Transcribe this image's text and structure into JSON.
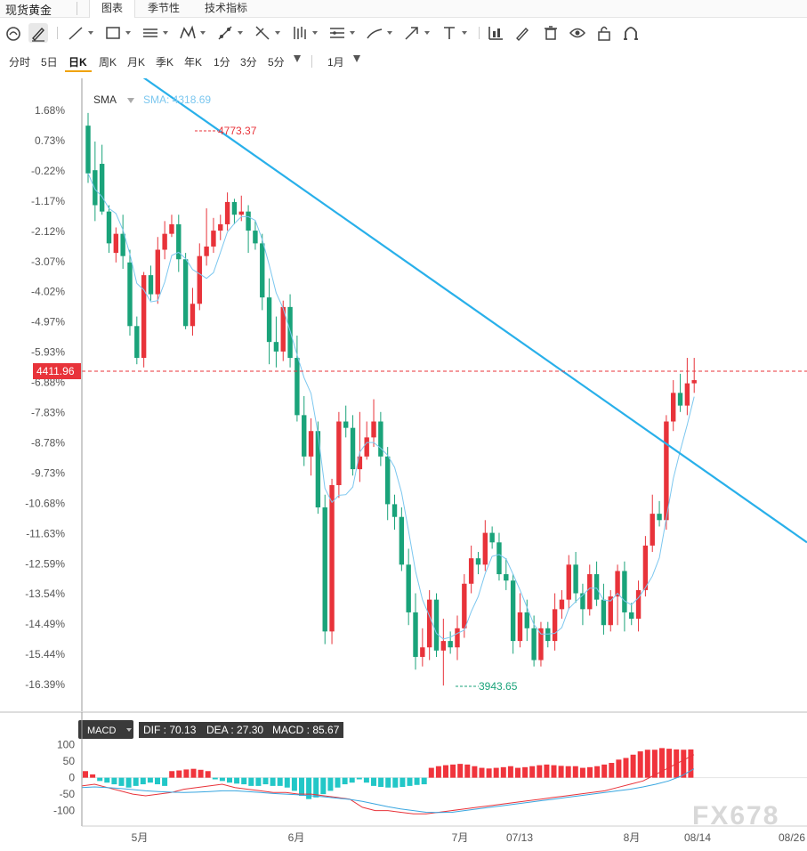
{
  "header": {
    "symbol": "现货黄金",
    "tabs": [
      {
        "label": "图表",
        "active": true
      },
      {
        "label": "季节性",
        "active": false
      },
      {
        "label": "技术指标",
        "active": false
      }
    ]
  },
  "toolbar": {
    "tools": [
      "magnet-icon",
      "pen-icon",
      "line-icon",
      "rectangle-icon",
      "parallel-lines-icon",
      "pattern-icon",
      "fib-icon",
      "cross-lines-icon",
      "bars-icon",
      "channel-icon",
      "brush-icon",
      "arrow-icon",
      "text-icon",
      "bar-chart-icon",
      "edit-icon",
      "trash-icon",
      "eye-icon",
      "lock-icon",
      "magnet-u-icon"
    ]
  },
  "timeframes": {
    "items": [
      "分时",
      "5日",
      "日K",
      "周K",
      "月K",
      "季K",
      "年K",
      "1分",
      "3分",
      "5分"
    ],
    "active": "日K",
    "range": "1月"
  },
  "main_chart": {
    "indicator_label": "SMA",
    "sma_value_label": "SMA: 4318.69",
    "high_label": "4773.37",
    "low_label": "3943.65",
    "current_price_label": "4411.96",
    "y_ticks": [
      "1.68%",
      "0.73%",
      "-0.22%",
      "-1.17%",
      "-2.12%",
      "-3.07%",
      "-4.02%",
      "-4.97%",
      "-5.93%",
      "-6.88%",
      "-7.83%",
      "-8.78%",
      "-9.73%",
      "-10.68%",
      "-11.63%",
      "-12.59%",
      "-13.54%",
      "-14.49%",
      "-15.44%",
      "-16.39%"
    ],
    "x_ticks": [
      "5月",
      "6月",
      "7月",
      "07/13",
      "8月",
      "08/14",
      "08/26"
    ]
  },
  "macd": {
    "label": "MACD",
    "dif_label": "DIF : 70.13",
    "dea_label": "DEA : 27.30",
    "macd_label": "MACD : 85.67",
    "y_ticks": [
      "100",
      "50",
      "0",
      "-50",
      "-100"
    ]
  },
  "watermark": "FX678",
  "colors": {
    "up": "#e8333a",
    "down": "#1aa37a",
    "trend": "#29b0ea",
    "sma": "#7cc7ef",
    "macd_pos": "#f0343c",
    "macd_neg": "#22c7c7",
    "dif": "#e8333a",
    "dea": "#39a6e0"
  },
  "chart_data": {
    "type": "candlestick",
    "candles": [
      [
        1.2,
        -0.3,
        1.6,
        -0.6
      ],
      [
        -0.2,
        -1.3,
        0.7,
        -1.8
      ],
      [
        0.0,
        -1.5,
        0.6,
        -1.6
      ],
      [
        -1.5,
        -2.5,
        -1.3,
        -2.8
      ],
      [
        -2.8,
        -2.2,
        -2.0,
        -3.1
      ],
      [
        -2.2,
        -2.9,
        -1.6,
        -3.3
      ],
      [
        -3.1,
        -5.1,
        -2.7,
        -5.4
      ],
      [
        -5.1,
        -6.1,
        -4.8,
        -6.3
      ],
      [
        -6.1,
        -3.5,
        -3.4,
        -6.4
      ],
      [
        -3.5,
        -4.1,
        -3.2,
        -4.3
      ],
      [
        -4.1,
        -2.7,
        -2.3,
        -4.4
      ],
      [
        -2.7,
        -2.2,
        -1.8,
        -3.0
      ],
      [
        -2.2,
        -1.9,
        -1.6,
        -2.3
      ],
      [
        -1.9,
        -3.0,
        -1.6,
        -3.4
      ],
      [
        -3.0,
        -5.1,
        -2.8,
        -5.2
      ],
      [
        -5.1,
        -4.4,
        -3.9,
        -5.4
      ],
      [
        -4.4,
        -2.9,
        -2.5,
        -4.6
      ],
      [
        -2.9,
        -2.6,
        -1.4,
        -3.2
      ],
      [
        -2.6,
        -2.1,
        -1.7,
        -2.8
      ],
      [
        -2.1,
        -1.9,
        -1.6,
        -2.4
      ],
      [
        -1.9,
        -1.2,
        -0.9,
        -2.1
      ],
      [
        -1.2,
        -1.6,
        -1.1,
        -1.9
      ],
      [
        -1.6,
        -1.5,
        -1.0,
        -1.8
      ],
      [
        -1.5,
        -2.1,
        -1.3,
        -2.8
      ],
      [
        -2.1,
        -2.5,
        -1.8,
        -2.7
      ],
      [
        -2.5,
        -4.2,
        -2.2,
        -4.6
      ],
      [
        -4.2,
        -5.6,
        -3.6,
        -6.3
      ],
      [
        -5.6,
        -5.9,
        -4.8,
        -6.4
      ],
      [
        -5.9,
        -4.5,
        -4.3,
        -6.2
      ],
      [
        -4.5,
        -6.1,
        -4.1,
        -6.4
      ],
      [
        -6.1,
        -7.9,
        -5.4,
        -8.1
      ],
      [
        -7.9,
        -9.2,
        -7.3,
        -9.5
      ],
      [
        -9.2,
        -8.4,
        -8.0,
        -9.8
      ],
      [
        -8.4,
        -10.8,
        -8.1,
        -11.0
      ],
      [
        -10.8,
        -14.7,
        -10.4,
        -15.1
      ],
      [
        -14.7,
        -10.1,
        -9.9,
        -15.1
      ],
      [
        -10.1,
        -8.1,
        -7.8,
        -10.5
      ],
      [
        -8.1,
        -8.3,
        -7.6,
        -8.6
      ],
      [
        -8.3,
        -9.6,
        -7.9,
        -9.8
      ],
      [
        -9.6,
        -9.2,
        -7.8,
        -10.0
      ],
      [
        -9.2,
        -8.6,
        -8.1,
        -9.3
      ],
      [
        -8.6,
        -8.1,
        -7.4,
        -8.9
      ],
      [
        -8.1,
        -9.2,
        -7.8,
        -9.5
      ],
      [
        -9.2,
        -10.7,
        -8.9,
        -11.2
      ],
      [
        -10.7,
        -11.1,
        -10.4,
        -11.5
      ],
      [
        -11.1,
        -12.6,
        -10.8,
        -12.8
      ],
      [
        -12.6,
        -14.1,
        -12.1,
        -14.5
      ],
      [
        -14.1,
        -15.5,
        -13.5,
        -15.9
      ],
      [
        -15.5,
        -15.2,
        -14.6,
        -15.8
      ],
      [
        -15.2,
        -13.7,
        -13.4,
        -15.6
      ],
      [
        -13.7,
        -15.3,
        -13.5,
        -15.5
      ],
      [
        -15.3,
        -15.0,
        -14.3,
        -16.4
      ],
      [
        -15.0,
        -15.2,
        -14.7,
        -15.4
      ],
      [
        -15.2,
        -14.6,
        -14.2,
        -15.6
      ],
      [
        -14.6,
        -13.2,
        -12.9,
        -14.9
      ],
      [
        -13.2,
        -12.4,
        -12.0,
        -13.5
      ],
      [
        -12.4,
        -12.6,
        -12.2,
        -12.9
      ],
      [
        -12.6,
        -11.6,
        -11.2,
        -12.8
      ],
      [
        -11.6,
        -11.9,
        -11.4,
        -12.1
      ],
      [
        -11.9,
        -12.9,
        -11.6,
        -13.1
      ],
      [
        -12.9,
        -13.1,
        -12.4,
        -13.4
      ],
      [
        -13.1,
        -15.0,
        -12.9,
        -15.4
      ],
      [
        -15.0,
        -14.1,
        -13.5,
        -15.2
      ],
      [
        -14.1,
        -14.6,
        -13.7,
        -15.0
      ],
      [
        -14.6,
        -15.6,
        -14.2,
        -15.8
      ],
      [
        -15.6,
        -14.6,
        -14.4,
        -15.8
      ],
      [
        -14.6,
        -15.0,
        -14.4,
        -15.2
      ],
      [
        -15.0,
        -14.0,
        -13.5,
        -15.3
      ],
      [
        -14.0,
        -13.7,
        -13.4,
        -14.3
      ],
      [
        -13.7,
        -12.6,
        -12.3,
        -14.0
      ],
      [
        -12.6,
        -13.5,
        -12.2,
        -13.8
      ],
      [
        -13.5,
        -14.0,
        -13.2,
        -14.5
      ],
      [
        -14.0,
        -12.9,
        -12.6,
        -14.2
      ],
      [
        -12.9,
        -13.7,
        -12.5,
        -13.9
      ],
      [
        -13.7,
        -14.5,
        -13.2,
        -14.8
      ],
      [
        -14.5,
        -13.6,
        -13.4,
        -14.7
      ],
      [
        -13.6,
        -12.8,
        -12.6,
        -14.5
      ],
      [
        -12.8,
        -14.1,
        -12.5,
        -14.7
      ],
      [
        -14.1,
        -14.3,
        -13.8,
        -14.5
      ],
      [
        -14.3,
        -13.4,
        -13.1,
        -14.7
      ],
      [
        -13.4,
        -12.0,
        -11.7,
        -13.6
      ],
      [
        -12.0,
        -11.0,
        -10.4,
        -12.2
      ],
      [
        -11.0,
        -11.2,
        -10.6,
        -11.4
      ],
      [
        -11.2,
        -8.1,
        -7.9,
        -11.5
      ],
      [
        -8.1,
        -7.2,
        -6.8,
        -8.4
      ],
      [
        -7.2,
        -7.6,
        -6.6,
        -7.8
      ],
      [
        -7.6,
        -6.9,
        -6.1,
        -7.9
      ],
      [
        -6.9,
        -6.8,
        -6.1,
        -7.2
      ]
    ],
    "macd": {
      "hist": [
        20,
        10,
        -10,
        -15,
        -20,
        -25,
        -30,
        -25,
        -20,
        -15,
        -20,
        -25,
        20,
        22,
        25,
        27,
        24,
        20,
        -5,
        -10,
        -15,
        -18,
        -20,
        -25,
        -25,
        -20,
        -25,
        -25,
        -30,
        -40,
        -55,
        -65,
        -60,
        -50,
        -40,
        -30,
        -20,
        -15,
        -5,
        -15,
        -25,
        -28,
        -30,
        -30,
        -28,
        -25,
        -22,
        -20,
        30,
        35,
        38,
        40,
        42,
        40,
        35,
        30,
        28,
        30,
        32,
        35,
        30,
        32,
        35,
        38,
        40,
        38,
        36,
        35,
        35,
        30,
        32,
        35,
        40,
        45,
        55,
        60,
        70,
        80,
        85,
        85,
        90,
        88,
        86,
        85,
        86
      ],
      "dif": [
        -25,
        -20,
        -30,
        -40,
        -50,
        -55,
        -50,
        -45,
        -35,
        -30,
        -25,
        -20,
        -30,
        -35,
        -40,
        -45,
        -45,
        -50,
        -50,
        -55,
        -60,
        -65,
        -90,
        -100,
        -100,
        -105,
        -110,
        -110,
        -105,
        -100,
        -95,
        -90,
        -85,
        -80,
        -75,
        -70,
        -65,
        -60,
        -55,
        -50,
        -45,
        -40,
        -30,
        -20,
        -10,
        10,
        30,
        50,
        70
      ],
      "dea": [
        -30,
        -28,
        -30,
        -33,
        -36,
        -40,
        -42,
        -44,
        -45,
        -44,
        -42,
        -40,
        -40,
        -42,
        -45,
        -48,
        -50,
        -52,
        -55,
        -58,
        -62,
        -66,
        -72,
        -80,
        -88,
        -95,
        -100,
        -105,
        -106,
        -105,
        -100,
        -95,
        -90,
        -85,
        -80,
        -75,
        -70,
        -65,
        -60,
        -55,
        -50,
        -45,
        -40,
        -35,
        -28,
        -20,
        -10,
        5,
        27
      ],
      "ylim": [
        -120,
        110
      ]
    },
    "ylim": [
      -16.9,
      2.3
    ],
    "trendline_pct": [
      [
        0,
        3.6
      ],
      [
        1,
        -11.9
      ]
    ]
  }
}
